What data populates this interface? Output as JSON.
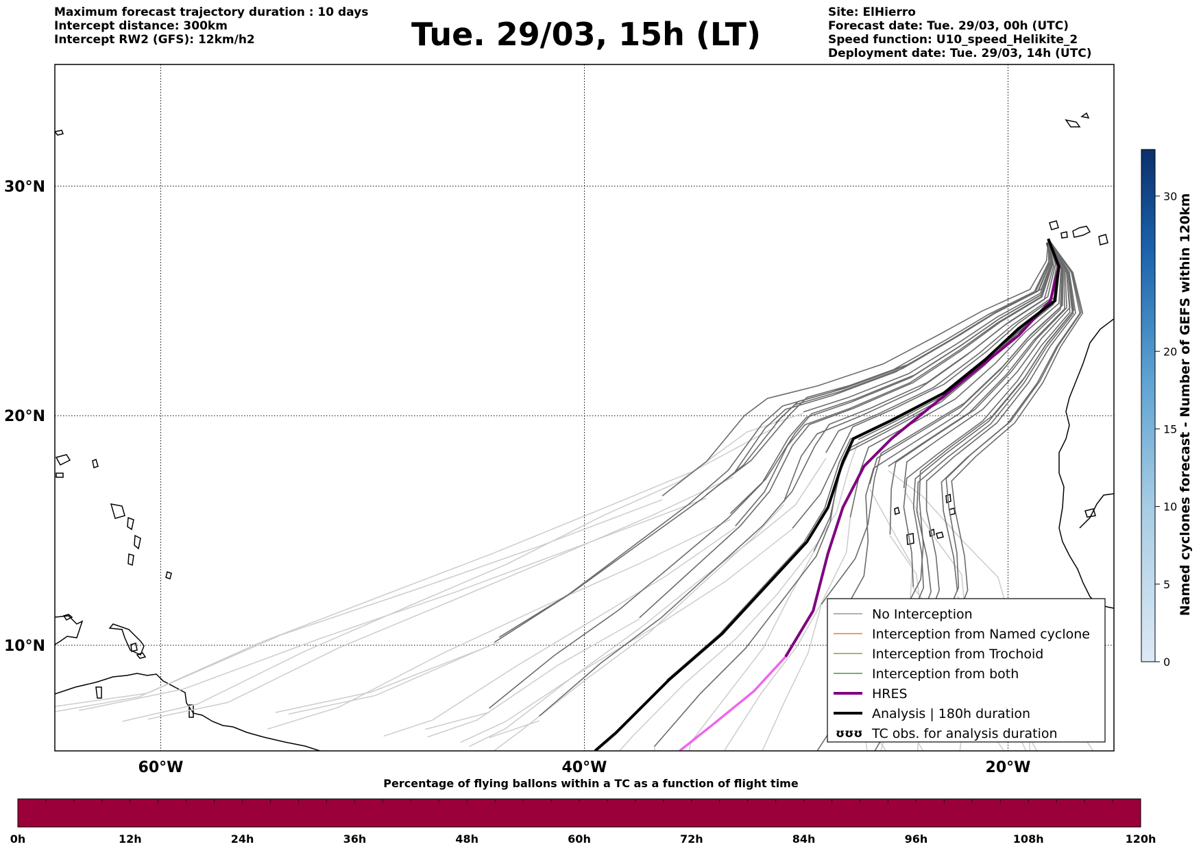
{
  "header_left": [
    "Maximum forecast trajectory duration : 10 days",
    "Intercept distance: 300km",
    "Intercept RW2 (GFS):  12km/h2"
  ],
  "title": "Tue. 29/03, 15h (LT)",
  "header_right": [
    "Site: ElHierro",
    "Forecast date: Tue. 29/03, 00h (UTC)",
    "Speed function: U10_speed_Helikite_2",
    "Deployment date: Tue. 29/03, 14h (UTC)"
  ],
  "map": {
    "lat_ticks": [
      {
        "value": 30,
        "label": "30°N"
      },
      {
        "value": 20,
        "label": "20°N"
      },
      {
        "value": 10,
        "label": "10°N"
      }
    ],
    "lon_ticks": [
      {
        "value": -60,
        "label": "60°W"
      },
      {
        "value": -40,
        "label": "40°W"
      },
      {
        "value": -20,
        "label": "20°W"
      }
    ],
    "extent": {
      "lon_min": -65,
      "lon_max": -15,
      "lat_min": 5.4,
      "lat_max": 35.3
    },
    "launch_point": {
      "lon": -18.1,
      "lat": 27.7
    }
  },
  "trajectories": {
    "analysis": [
      [
        -18.1,
        27.7
      ],
      [
        -17.6,
        26.5
      ],
      [
        -17.8,
        25.0
      ],
      [
        -19.5,
        23.8
      ],
      [
        -21.0,
        22.5
      ],
      [
        -23.0,
        21.0
      ],
      [
        -25.5,
        19.8
      ],
      [
        -27.3,
        19.0
      ],
      [
        -27.8,
        18.0
      ],
      [
        -28.5,
        16.0
      ],
      [
        -29.5,
        14.5
      ],
      [
        -31.5,
        12.5
      ],
      [
        -33.5,
        10.5
      ],
      [
        -36,
        8.5
      ],
      [
        -38.5,
        6.2
      ],
      [
        -39.5,
        5.4
      ]
    ],
    "hres": [
      [
        -18.1,
        27.7
      ],
      [
        -17.6,
        26.5
      ],
      [
        -18.0,
        25.0
      ],
      [
        -19.5,
        23.5
      ],
      [
        -21.5,
        22.0
      ],
      [
        -23.5,
        20.5
      ],
      [
        -25.5,
        19.0
      ],
      [
        -26.8,
        17.8
      ],
      [
        -27.8,
        16.0
      ],
      [
        -28.5,
        14.0
      ],
      [
        -29.2,
        11.5
      ],
      [
        -30.5,
        9.5
      ],
      [
        -32.0,
        8.0
      ],
      [
        -34.0,
        6.5
      ],
      [
        -35.5,
        5.4
      ]
    ]
  },
  "legend": [
    {
      "label": "No Interception",
      "color": "#808080"
    },
    {
      "label": "Interception from Named cyclone",
      "color": "#e06020"
    },
    {
      "label": "Interception from Trochoid",
      "color": "#808020"
    },
    {
      "label": "Interception from both",
      "color": "#208020"
    },
    {
      "label": "HRES",
      "color": "#800080"
    },
    {
      "label": "Analysis | 180h duration",
      "color": "#000000"
    },
    {
      "label": "TC obs. for analysis duration",
      "symbol": "ʊʊʊ"
    }
  ],
  "colorbar_right": {
    "label": "Named cyclones forecast - Number of GEFS within 120km",
    "ticks": [
      0,
      5,
      10,
      15,
      20,
      30
    ],
    "max": 33
  },
  "colorbar_bottom": {
    "title": "Percentage of flying ballons within a TC as a function of flight time",
    "ticks": [
      "0h",
      "12h",
      "24h",
      "36h",
      "48h",
      "60h",
      "72h",
      "84h",
      "96h",
      "108h",
      "120h"
    ],
    "fill_color": "#9b003a"
  }
}
